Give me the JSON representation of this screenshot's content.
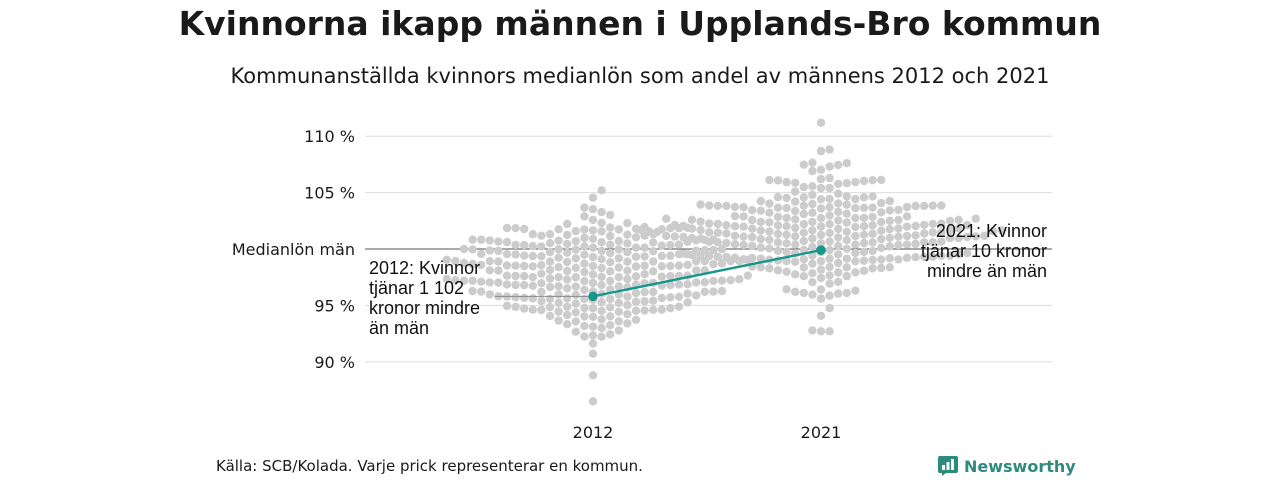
{
  "title": "Kvinnorna ikapp männen i Upplands-Bro kommun",
  "subtitle": "Kommunanställda kvinnors medianlön som andel av männens 2012 och 2021",
  "source": "Källa: SCB/Kolada. Varje prick representerar en kommun.",
  "brand": {
    "name": "Newsworthy",
    "color": "#2f8a7e",
    "icon": "newsworthy-logo-icon"
  },
  "chart_data": {
    "type": "scatter",
    "categories": [
      "2012",
      "2021"
    ],
    "y_ticks": [
      {
        "value": 110,
        "label": "110 %"
      },
      {
        "value": 105,
        "label": "105 %"
      },
      {
        "value": 100,
        "label": "Medianlön män"
      },
      {
        "value": 95,
        "label": "95 %"
      },
      {
        "value": 90,
        "label": "90 %"
      }
    ],
    "ylim": [
      86,
      111.5
    ],
    "reference_line": {
      "value": 100
    },
    "grid": true,
    "distribution_color": "#cccccc",
    "highlight_color": "#17968a",
    "distributions": [
      {
        "x": "2012",
        "min": 88.8,
        "max": 105.2,
        "center": 97.8,
        "spread": 2.7,
        "count": 290,
        "outlier": 86.5
      },
      {
        "x": "2021",
        "min": 92.7,
        "max": 111.2,
        "center": 101.6,
        "spread": 2.6,
        "count": 290
      }
    ],
    "highlight": {
      "series": "Upplands-Bro",
      "points": [
        {
          "x": "2012",
          "y": 95.8
        },
        {
          "x": "2021",
          "y": 99.9
        }
      ]
    },
    "annotations": [
      {
        "x": "2012",
        "lines": [
          "2012: Kvinnor",
          "tjänar 1 102",
          "kronor mindre",
          "än män"
        ]
      },
      {
        "x": "2021",
        "lines": [
          "2021: Kvinnor",
          "tjänar 10 kronor",
          "mindre än män"
        ]
      }
    ]
  }
}
